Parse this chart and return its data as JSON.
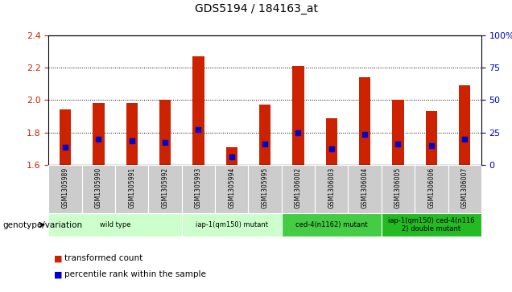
{
  "title": "GDS5194 / 184163_at",
  "samples": [
    "GSM1305989",
    "GSM1305990",
    "GSM1305991",
    "GSM1305992",
    "GSM1305993",
    "GSM1305994",
    "GSM1305995",
    "GSM1306002",
    "GSM1306003",
    "GSM1306004",
    "GSM1306005",
    "GSM1306006",
    "GSM1306007"
  ],
  "red_values": [
    1.94,
    1.98,
    1.98,
    2.0,
    2.27,
    1.71,
    1.97,
    2.21,
    1.89,
    2.14,
    2.0,
    1.93,
    2.09
  ],
  "blue_values": [
    1.71,
    1.76,
    1.75,
    1.74,
    1.82,
    1.65,
    1.73,
    1.8,
    1.7,
    1.79,
    1.73,
    1.72,
    1.76
  ],
  "ylim": [
    1.6,
    2.4
  ],
  "yticks_left": [
    1.6,
    1.8,
    2.0,
    2.2,
    2.4
  ],
  "yticks_right": [
    0,
    25,
    50,
    75,
    100
  ],
  "bar_width": 0.35,
  "group_defs": [
    {
      "label": "wild type",
      "start": 0,
      "end": 3,
      "color": "#ccffcc"
    },
    {
      "label": "iap-1(qm150) mutant",
      "start": 4,
      "end": 6,
      "color": "#ccffcc"
    },
    {
      "label": "ced-4(n1162) mutant",
      "start": 7,
      "end": 9,
      "color": "#44cc44"
    },
    {
      "label": "iap-1(qm150) ced-4(n116\n2) double mutant",
      "start": 10,
      "end": 12,
      "color": "#22bb22"
    }
  ],
  "red_color": "#cc2200",
  "blue_color": "#0000cc",
  "bg_xticklabels": "#cccccc",
  "genotype_label": "genotype/variation",
  "legend_red": "transformed count",
  "legend_blue": "percentile rank within the sample"
}
